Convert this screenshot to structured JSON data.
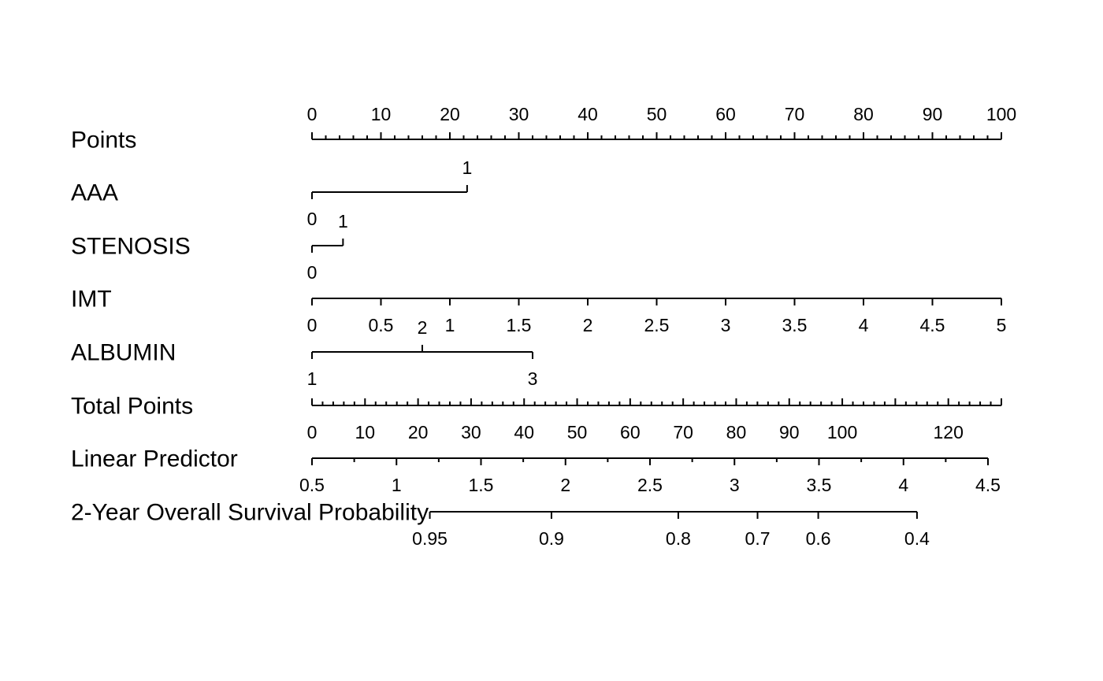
{
  "chart_data": {
    "type": "nomogram",
    "points_range": [
      0,
      100
    ],
    "rows": [
      {
        "key": "points",
        "label": "Points",
        "kind": "points-scale",
        "ticks": [
          0,
          10,
          20,
          30,
          40,
          50,
          60,
          70,
          80,
          90,
          100
        ],
        "tick_labels": [
          "0",
          "10",
          "20",
          "30",
          "40",
          "50",
          "60",
          "70",
          "80",
          "90",
          "100"
        ],
        "minor_step": 2
      },
      {
        "key": "aaa",
        "label": "AAA",
        "kind": "categorical",
        "levels": [
          {
            "label": "0",
            "points": 0,
            "side": "below"
          },
          {
            "label": "1",
            "points": 22.5,
            "side": "above"
          }
        ]
      },
      {
        "key": "stenosis",
        "label": "STENOSIS",
        "kind": "categorical",
        "levels": [
          {
            "label": "0",
            "points": 0,
            "side": "below"
          },
          {
            "label": "1",
            "points": 4.5,
            "side": "above"
          }
        ]
      },
      {
        "key": "imt",
        "label": "IMT",
        "kind": "continuous",
        "ticks": [
          0,
          0.5,
          1,
          1.5,
          2,
          2.5,
          3,
          3.5,
          4,
          4.5,
          5
        ],
        "tick_labels": [
          "0",
          "0.5",
          "1",
          "1.5",
          "2",
          "2.5",
          "3",
          "3.5",
          "4",
          "4.5",
          "5"
        ],
        "points_per_unit": 20
      },
      {
        "key": "albumin",
        "label": "ALBUMIN",
        "kind": "categorical",
        "levels": [
          {
            "label": "1",
            "points": 0,
            "side": "below"
          },
          {
            "label": "2",
            "points": 16,
            "side": "above"
          },
          {
            "label": "3",
            "points": 32,
            "side": "below"
          }
        ]
      },
      {
        "key": "total_points",
        "label": "Total Points",
        "kind": "total-scale",
        "range": [
          0,
          130
        ],
        "ticks": [
          0,
          10,
          20,
          30,
          40,
          50,
          60,
          70,
          80,
          90,
          100,
          120
        ],
        "tick_labels": [
          "0",
          "10",
          "20",
          "30",
          "40",
          "50",
          "60",
          "70",
          "80",
          "90",
          "100",
          "120"
        ],
        "minor_step": 2
      },
      {
        "key": "linear_predictor",
        "label": "Linear Predictor",
        "kind": "lp-scale",
        "ticks": [
          0.5,
          1,
          1.5,
          2,
          2.5,
          3,
          3.5,
          4,
          4.5
        ],
        "tick_labels": [
          "0.5",
          "1",
          "1.5",
          "2",
          "2.5",
          "3",
          "3.5",
          "4",
          "4.5"
        ],
        "minor_step": 0.25
      },
      {
        "key": "survival",
        "label": "2-Year Overall Survival Probability",
        "kind": "survival-scale",
        "ticks": [
          0.95,
          0.9,
          0.8,
          0.7,
          0.6,
          0.4
        ],
        "tick_labels": [
          "0.95",
          "0.9",
          "0.8",
          "0.7",
          "0.6",
          "0.4"
        ]
      }
    ]
  }
}
